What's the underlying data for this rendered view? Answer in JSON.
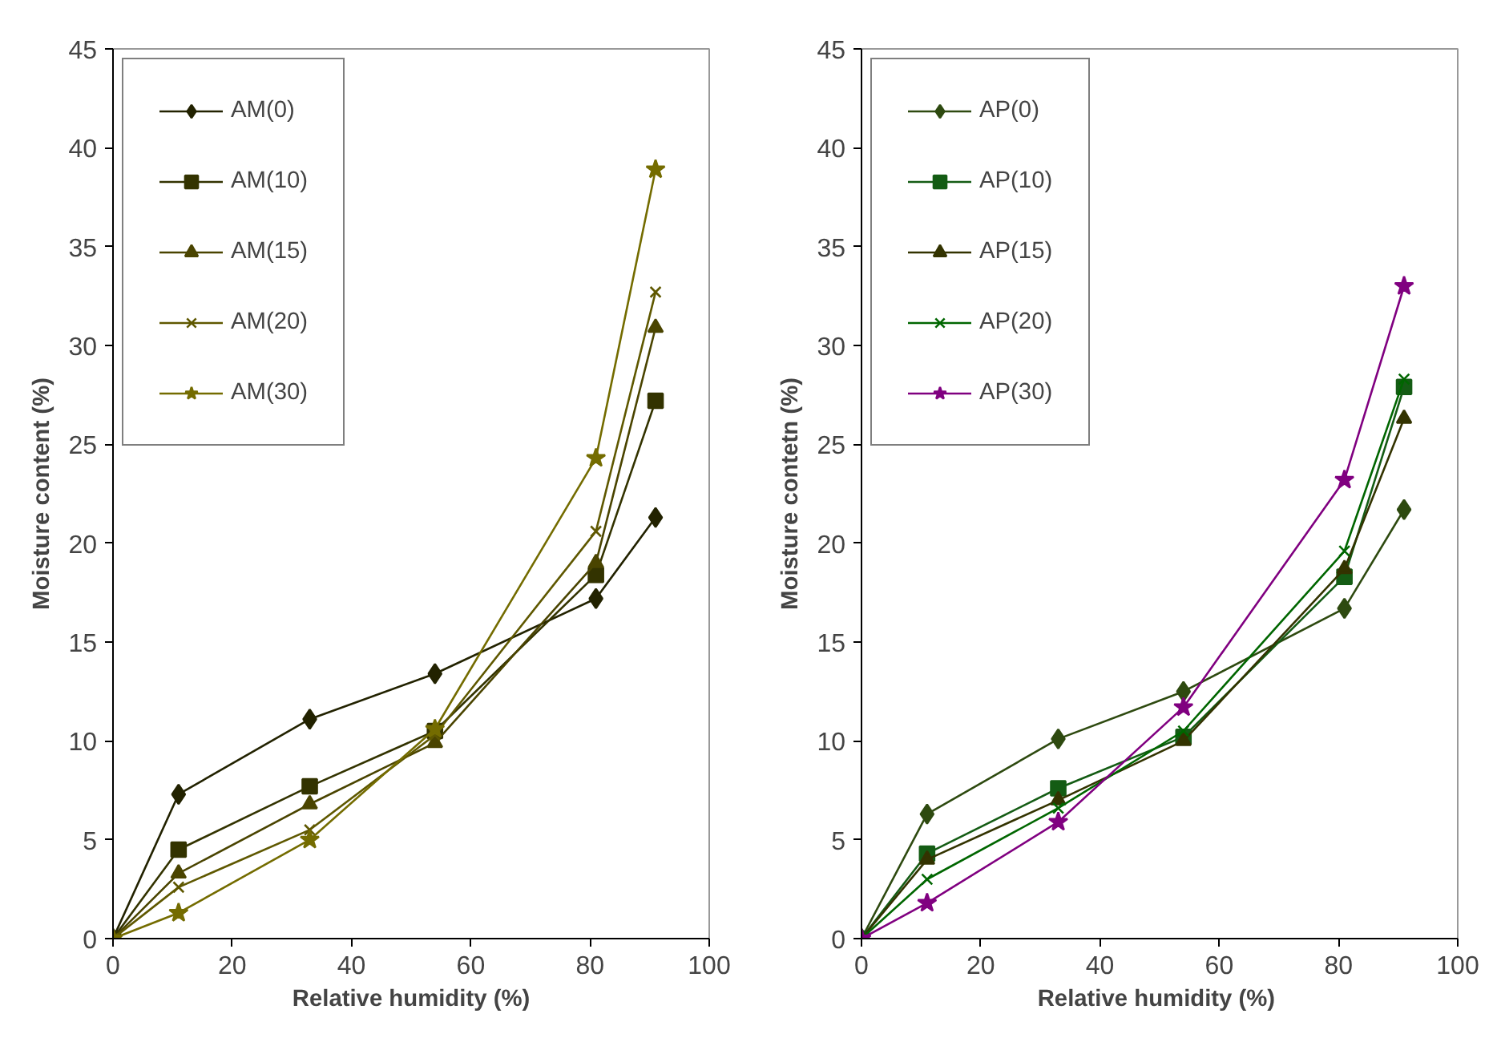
{
  "chart_data": [
    {
      "type": "line",
      "xlabel": "Relative humidity (%)",
      "ylabel": "Moisture content (%)",
      "x": [
        0,
        11,
        33,
        54,
        81,
        91
      ],
      "xlim": [
        0,
        100
      ],
      "xticks": [
        0,
        20,
        40,
        60,
        80,
        100
      ],
      "ylim": [
        0,
        45
      ],
      "yticks": [
        0,
        5,
        10,
        15,
        20,
        25,
        30,
        35,
        40,
        45
      ],
      "grid": false,
      "legend": "top left",
      "series": [
        {
          "name": "AM(0)",
          "color": "#222200",
          "marker": "diamond",
          "values": [
            0,
            7.3,
            11.1,
            13.4,
            17.2,
            21.3
          ]
        },
        {
          "name": "AM(10)",
          "color": "#333300",
          "marker": "square",
          "values": [
            0,
            4.5,
            7.7,
            10.5,
            18.4,
            27.2
          ]
        },
        {
          "name": "AM(15)",
          "color": "#4a4400",
          "marker": "triangle",
          "values": [
            0,
            3.3,
            6.8,
            9.9,
            19.0,
            30.9
          ]
        },
        {
          "name": "AM(20)",
          "color": "#5f5800",
          "marker": "cross",
          "values": [
            0,
            2.6,
            5.5,
            10.3,
            20.6,
            32.7
          ]
        },
        {
          "name": "AM(30)",
          "color": "#746c00",
          "marker": "star",
          "values": [
            0,
            1.3,
            5.0,
            10.6,
            24.3,
            38.9
          ]
        }
      ]
    },
    {
      "type": "line",
      "xlabel": "Relative humidity  (%)",
      "ylabel": "Moisture contetn (%)",
      "x": [
        0,
        11,
        33,
        54,
        81,
        91
      ],
      "xlim": [
        0,
        100
      ],
      "xticks": [
        0,
        20,
        40,
        60,
        80,
        100
      ],
      "ylim": [
        0,
        45
      ],
      "yticks": [
        0,
        5,
        10,
        15,
        20,
        25,
        30,
        35,
        40,
        45
      ],
      "grid": false,
      "legend": "top left",
      "series": [
        {
          "name": "AP(0)",
          "color": "#2e4a10",
          "marker": "diamond",
          "values": [
            0,
            6.3,
            10.1,
            12.5,
            16.7,
            21.7
          ]
        },
        {
          "name": "AP(10)",
          "color": "#145c14",
          "marker": "square",
          "values": [
            0,
            4.3,
            7.6,
            10.2,
            18.3,
            27.9
          ]
        },
        {
          "name": "AP(15)",
          "color": "#333300",
          "marker": "triangle",
          "values": [
            0,
            4.0,
            7.0,
            10.0,
            18.7,
            26.3
          ]
        },
        {
          "name": "AP(20)",
          "color": "#006600",
          "marker": "cross",
          "values": [
            0,
            3.0,
            6.6,
            10.5,
            19.6,
            28.3
          ]
        },
        {
          "name": "AP(30)",
          "color": "#800080",
          "marker": "star",
          "values": [
            0,
            1.8,
            5.9,
            11.7,
            23.2,
            33.0
          ]
        }
      ]
    }
  ]
}
